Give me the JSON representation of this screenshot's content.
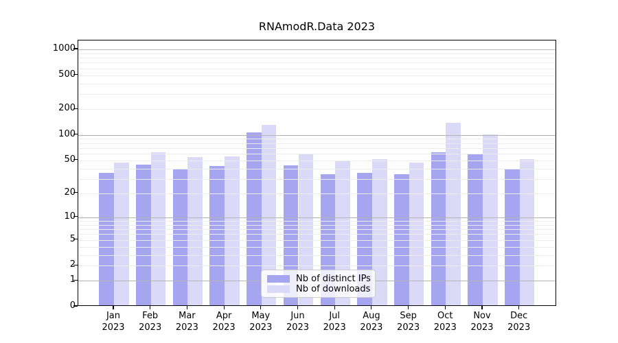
{
  "title": "RNAmodR.Data 2023",
  "chart_data": {
    "type": "bar",
    "title": "RNAmodR.Data 2023",
    "categories": [
      "Jan 2023",
      "Feb 2023",
      "Mar 2023",
      "Apr 2023",
      "May 2023",
      "Jun 2023",
      "Jul 2023",
      "Aug 2023",
      "Sep 2023",
      "Oct 2023",
      "Nov 2023",
      "Dec 2023"
    ],
    "months": [
      "Jan",
      "Feb",
      "Mar",
      "Apr",
      "May",
      "Jun",
      "Jul",
      "Aug",
      "Sep",
      "Oct",
      "Nov",
      "Dec"
    ],
    "year": "2023",
    "series": [
      {
        "name": "Nb of distinct IPs",
        "color": "#a5a5f0",
        "values": [
          34,
          43,
          38,
          41,
          103,
          42,
          33,
          34,
          33,
          60,
          58,
          38
        ]
      },
      {
        "name": "Nb of downloads",
        "color": "#dadaf8",
        "values": [
          45,
          60,
          53,
          54,
          127,
          57,
          47,
          50,
          45,
          133,
          97,
          50
        ]
      }
    ],
    "xlabel": "",
    "ylabel": "",
    "yticks": [
      1000,
      500,
      200,
      100,
      50,
      20,
      10,
      5,
      2,
      1,
      0
    ],
    "ylim": [
      0,
      1272
    ],
    "scale": "log10(value+1)",
    "grid": "on",
    "legend_position": "lower center"
  }
}
